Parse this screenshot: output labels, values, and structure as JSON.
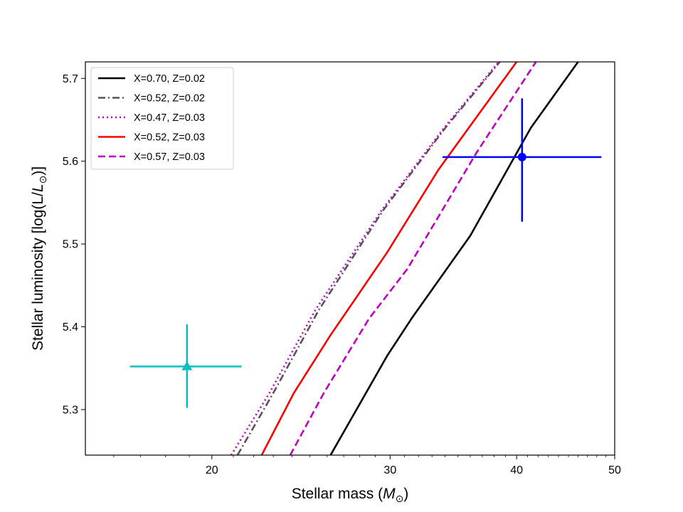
{
  "chart_data": {
    "type": "line",
    "xlabel": "Stellar mass",
    "xlabel_unit_math": "(M",
    "xlabel_close": ")",
    "ylabel_prefix": "Stellar luminosity [log(L/L",
    "ylabel_suffix": ")]",
    "x_scale": "log",
    "xlim": [
      15.0,
      50.0
    ],
    "ylim": [
      5.245,
      5.72
    ],
    "x_ticks": [
      20,
      30,
      40,
      50
    ],
    "x_tick_labels": [
      "20",
      "30",
      "40",
      "50"
    ],
    "y_ticks": [
      5.3,
      5.4,
      5.5,
      5.6,
      5.7
    ],
    "y_tick_labels": [
      "5.3",
      "5.4",
      "5.5",
      "5.6",
      "5.7"
    ],
    "grid": false,
    "legend_position": "top-left",
    "series": [
      {
        "name": "X=0.70, Z=0.02",
        "color": "#000000",
        "dash": "solid",
        "x": [
          26.2,
          29.8,
          31.5,
          36.0,
          41.3,
          46.0
        ],
        "y": [
          5.245,
          5.365,
          5.41,
          5.51,
          5.64,
          5.72
        ]
      },
      {
        "name": "X=0.52, Z=0.02",
        "color": "#555555",
        "dash": "dashdot",
        "x": [
          21.2,
          23.0,
          25.5,
          29.5,
          34.0,
          38.5
        ],
        "y": [
          5.245,
          5.32,
          5.42,
          5.54,
          5.64,
          5.72
        ]
      },
      {
        "name": "X=0.47, Z=0.03",
        "color": "#bf00bf",
        "dash": "dotted",
        "x": [
          20.9,
          22.8,
          25.3,
          29.4,
          33.9,
          38.4
        ],
        "y": [
          5.245,
          5.32,
          5.42,
          5.54,
          5.64,
          5.72
        ]
      },
      {
        "name": "X=0.52, Z=0.03",
        "color": "#ff0000",
        "dash": "solid",
        "x": [
          22.4,
          24.1,
          26.2,
          29.8,
          33.5,
          40.0
        ],
        "y": [
          5.245,
          5.32,
          5.39,
          5.49,
          5.59,
          5.72
        ]
      },
      {
        "name": "X=0.57, Z=0.03",
        "color": "#bf00bf",
        "dash": "dashed",
        "x": [
          23.9,
          25.8,
          28.6,
          31.2,
          36.5,
          41.8
        ],
        "y": [
          5.245,
          5.32,
          5.41,
          5.47,
          5.61,
          5.72
        ]
      }
    ],
    "points": [
      {
        "marker": "circle",
        "color": "#0000ff",
        "x": 40.5,
        "y": 5.605,
        "x_err": [
          33.8,
          48.5
        ],
        "y_err": [
          5.527,
          5.676
        ]
      },
      {
        "marker": "triangle",
        "color": "#00bfbf",
        "x": 18.9,
        "y": 5.352,
        "x_err": [
          16.6,
          21.4
        ],
        "y_err": [
          5.302,
          5.403
        ]
      }
    ]
  }
}
